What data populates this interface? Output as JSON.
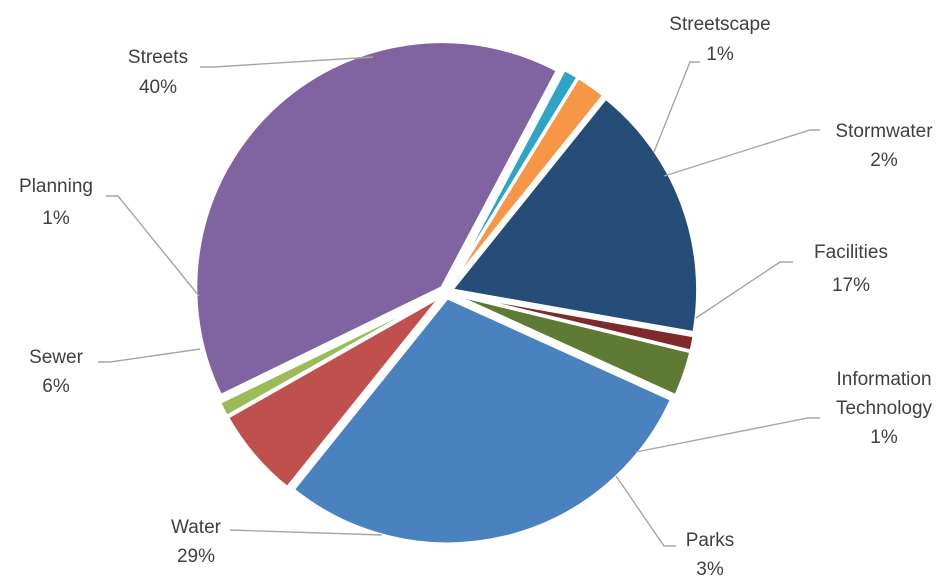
{
  "chart_data": {
    "type": "pie",
    "slices": [
      {
        "name": "Streetscape",
        "value": 1,
        "label": "1%",
        "color": "#2FA4C4"
      },
      {
        "name": "Stormwater",
        "value": 2,
        "label": "2%",
        "color": "#F79646"
      },
      {
        "name": "Facilities",
        "value": 17,
        "label": "17%",
        "color": "#264D78"
      },
      {
        "name": "Information Technology",
        "value": 1,
        "label": "1%",
        "color": "#7F2A2A"
      },
      {
        "name": "Parks",
        "value": 3,
        "label": "3%",
        "color": "#5E7A35"
      },
      {
        "name": "Water",
        "value": 29,
        "label": "29%",
        "color": "#4A81BF"
      },
      {
        "name": "Sewer",
        "value": 6,
        "label": "6%",
        "color": "#C0504D"
      },
      {
        "name": "Planning",
        "value": 1,
        "label": "1%",
        "color": "#9BBB59"
      },
      {
        "name": "Streets",
        "value": 40,
        "label": "40%",
        "color": "#8064A2"
      }
    ],
    "labels": {
      "streetscape": {
        "line1": "Streetscape",
        "pct": "1%"
      },
      "stormwater": {
        "line1": "Stormwater",
        "pct": "2%"
      },
      "facilities": {
        "line1": "Facilities",
        "pct": "17%"
      },
      "it": {
        "line1": "Information",
        "line2": "Technology",
        "pct": "1%"
      },
      "parks": {
        "line1": "Parks",
        "pct": "3%"
      },
      "water": {
        "line1": "Water",
        "pct": "29%"
      },
      "sewer": {
        "line1": "Sewer",
        "pct": "6%"
      },
      "planning": {
        "line1": "Planning",
        "pct": "1%"
      },
      "streets": {
        "line1": "Streets",
        "pct": "40%"
      }
    }
  }
}
